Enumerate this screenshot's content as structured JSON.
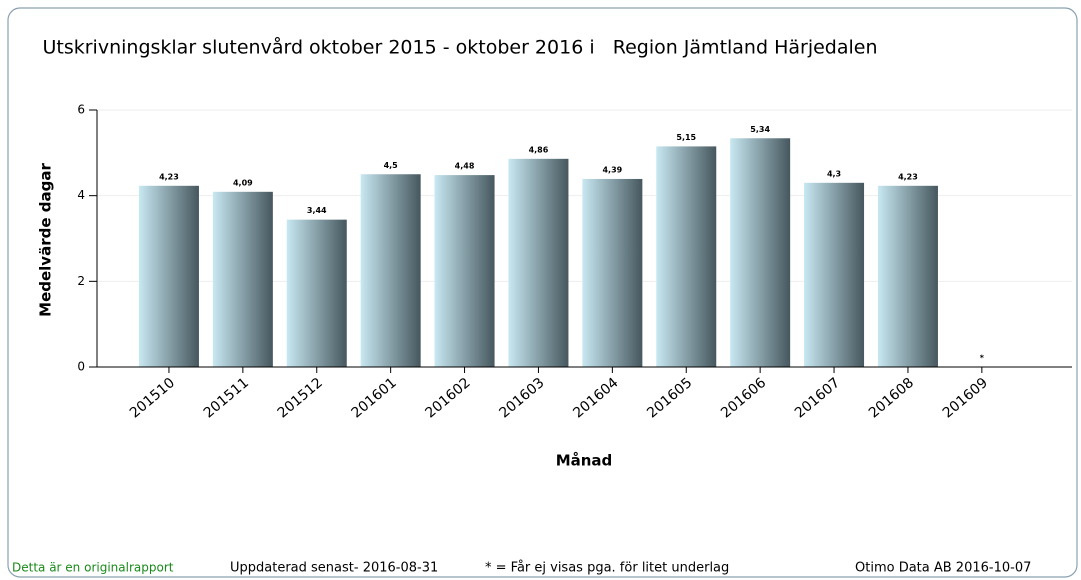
{
  "chart_data": {
    "type": "bar",
    "title": "Utskrivningsklar slutenvård oktober 2015 - oktober 2016 i   Region Jämtland Härjedalen",
    "xlabel": "Månad",
    "ylabel": "Medelvärde dagar",
    "categories": [
      "201510",
      "201511",
      "201512",
      "201601",
      "201602",
      "201603",
      "201604",
      "201605",
      "201606",
      "201607",
      "201608",
      "201609"
    ],
    "values": [
      4.23,
      4.09,
      3.44,
      4.5,
      4.48,
      4.86,
      4.39,
      5.15,
      5.34,
      4.3,
      4.23,
      null
    ],
    "value_labels": [
      "4,23",
      "4,09",
      "3,44",
      "4,5",
      "4,48",
      "4,86",
      "4,39",
      "5,15",
      "5,34",
      "4,3",
      "4,23",
      "*"
    ],
    "color": [
      "#c8e8f2",
      "#46575e"
    ],
    "ylim": [
      0,
      6
    ],
    "yticks": [
      0,
      2,
      4,
      6
    ],
    "grid": true,
    "footer": {
      "original": "Detta är en originalrapport",
      "updated": "Uppdaterad senast- 2016-08-31",
      "note": "* = Får ej visas pga. för litet underlag",
      "source": "Otimo Data AB 2016-10-07"
    }
  }
}
